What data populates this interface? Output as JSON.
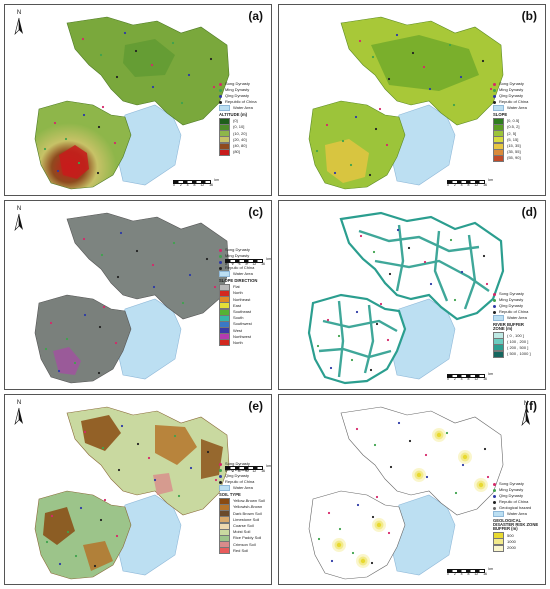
{
  "panels": [
    {
      "label": "(a)",
      "legend_points": [
        "Song Dynasty",
        "Ming Dynasty",
        "Qing Dynasty",
        "Republic of China"
      ],
      "water_label": "Water Area",
      "legend_title": "ALTITUDE (m)",
      "classes": [
        "(0]",
        "(0, 10]",
        "(10, 20]",
        "(20, 40]",
        "(40, 80]",
        "(80]"
      ],
      "colors": [
        "#1f5f1b",
        "#4f8c2a",
        "#8eb64a",
        "#c7c267",
        "#8f4a1e",
        "#c81b1b"
      ]
    },
    {
      "label": "(b)",
      "legend_points": [
        "Song Dynasty",
        "Ming Dynasty",
        "Qing Dynasty",
        "Repulic of China"
      ],
      "water_label": "Water Area",
      "legend_title": "SLOPE",
      "classes": [
        "[0, 0.5]",
        "(0.5, 2]",
        "(2, 5]",
        "(5, 15]",
        "(15, 35]",
        "(35, 55]",
        "(55, 90]"
      ],
      "colors": [
        "#2e7d1e",
        "#5c9e24",
        "#9cc43a",
        "#d7dd3e",
        "#e7c642",
        "#d98a3a",
        "#c14a28"
      ]
    },
    {
      "label": "(c)",
      "legend_points": [
        "Song Dynasty",
        "Ming Dynasty",
        "Qing Dynasty",
        "Repulic of China"
      ],
      "water_label": "Water Area",
      "legend_title": "SLOPE DIRECTION",
      "classes": [
        "Flat",
        "North",
        "Northeast",
        "East",
        "Southeast",
        "South",
        "Southwest",
        "West",
        "Northwest",
        "North"
      ],
      "colors": [
        "#b9b9b9",
        "#d3281f",
        "#e08a24",
        "#e5df38",
        "#55b234",
        "#36b6a8",
        "#3a79c6",
        "#3b3ba6",
        "#b43bb0",
        "#d3281f"
      ]
    },
    {
      "label": "(d)",
      "legend_points": [
        "Song Dynasty",
        "Ming Dynasty",
        "Qing Dynasty",
        "Repulic of China"
      ],
      "water_label": "Water Area",
      "legend_title": "RIVER BUFFER ZONE (m)",
      "classes": [
        "( 0 , 100 ]",
        "( 100 , 200 ]",
        "( 200 , 500 ]",
        "( 500 , 1000 ]"
      ],
      "colors": [
        "#bfe9e4",
        "#6bcdc0",
        "#2b9e8f",
        "#15665f"
      ]
    },
    {
      "label": "(e)",
      "legend_points": [
        "Song Dynasty",
        "Ming Dynasty",
        "Qing Dynasty",
        "Repulic of China"
      ],
      "water_label": "Water Area",
      "legend_title": "SOIL TYPE",
      "classes": [
        "Yellow-Brown Soil",
        "Yellowish-Brown",
        "Dark Brown Soil",
        "Limestone Soil",
        "Coarse Soil",
        "Moist Soil",
        "Rice Paddy Soil",
        "Crimson Soil",
        "Red Soil"
      ],
      "colors": [
        "#8a4b12",
        "#b5742a",
        "#6b4a2b",
        "#d9a86a",
        "#efd9b0",
        "#c9d9a0",
        "#9cc48a",
        "#d98b8b",
        "#e85b5b"
      ]
    },
    {
      "label": "(f)",
      "legend_points": [
        "Song Dynasty",
        "Ming Dynasty",
        "Qing Dynasty",
        "Repulic of China",
        "Geological hazard"
      ],
      "water_label": "Water Area",
      "legend_title": "GEOLOGICAL DISASTER RISK ZONE BUFFER (m)",
      "classes": [
        "500",
        "1000",
        "2000"
      ],
      "colors": [
        "#e8d930",
        "#f2ea8a",
        "#faf6cc"
      ]
    }
  ],
  "point_colors": [
    "#d6286a",
    "#3fa34d",
    "#2d3aa6",
    "#222222",
    "#6a6a6a"
  ],
  "water_color": "#bcdff2",
  "scale": {
    "ticks": [
      "0",
      "2",
      "4",
      "8",
      "12",
      "16"
    ],
    "unit": "km"
  },
  "north_label": "N"
}
